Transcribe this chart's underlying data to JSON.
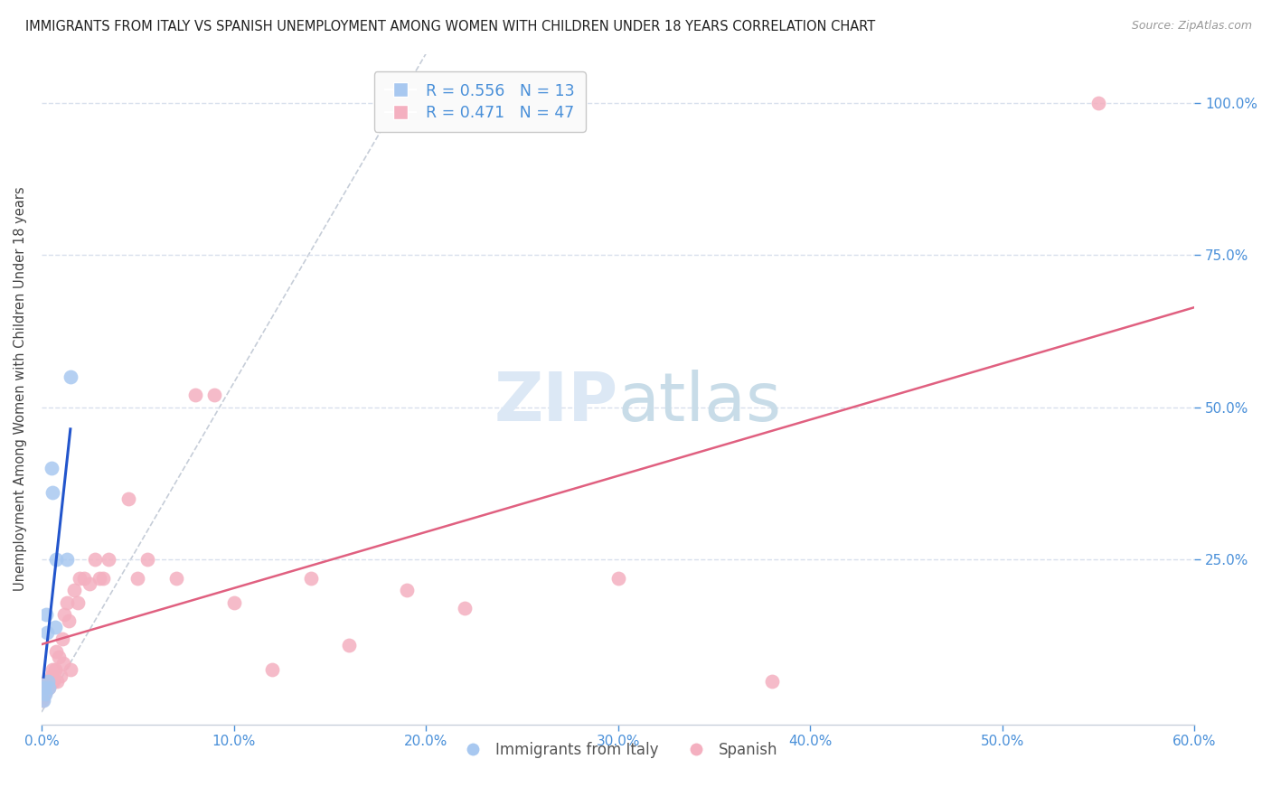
{
  "title": "IMMIGRANTS FROM ITALY VS SPANISH UNEMPLOYMENT AMONG WOMEN WITH CHILDREN UNDER 18 YEARS CORRELATION CHART",
  "source": "Source: ZipAtlas.com",
  "ylabel": "Unemployment Among Women with Children Under 18 years",
  "x_tick_values": [
    0.0,
    10.0,
    20.0,
    30.0,
    40.0,
    50.0,
    60.0
  ],
  "y_tick_values": [
    25.0,
    50.0,
    75.0,
    100.0
  ],
  "xlim": [
    0.0,
    60.0
  ],
  "ylim": [
    -2.0,
    108.0
  ],
  "italy_R": 0.556,
  "italy_N": 13,
  "spanish_R": 0.471,
  "spanish_N": 47,
  "italy_color": "#a8c8f0",
  "spanish_color": "#f4b0c0",
  "italy_line_color": "#2255cc",
  "spanish_line_color": "#e06080",
  "ref_line_color": "#c0c8d4",
  "background_color": "#ffffff",
  "grid_color": "#d8e0ec",
  "watermark_color": "#dce8f5",
  "italy_x": [
    0.1,
    0.15,
    0.2,
    0.25,
    0.3,
    0.35,
    0.4,
    0.5,
    0.55,
    0.7,
    0.75,
    1.3,
    1.5
  ],
  "italy_y": [
    2.0,
    4.0,
    3.0,
    16.0,
    13.0,
    5.0,
    4.0,
    40.0,
    36.0,
    14.0,
    25.0,
    25.0,
    55.0
  ],
  "spanish_x": [
    0.05,
    0.1,
    0.15,
    0.2,
    0.25,
    0.3,
    0.35,
    0.4,
    0.45,
    0.5,
    0.55,
    0.6,
    0.7,
    0.75,
    0.8,
    0.9,
    1.0,
    1.1,
    1.15,
    1.2,
    1.3,
    1.4,
    1.5,
    1.7,
    1.9,
    2.0,
    2.2,
    2.5,
    2.8,
    3.0,
    3.2,
    3.5,
    4.5,
    5.0,
    5.5,
    7.0,
    8.0,
    9.0,
    10.0,
    12.0,
    14.0,
    16.0,
    19.0,
    22.0,
    30.0,
    38.0,
    55.0
  ],
  "spanish_y": [
    2.0,
    2.5,
    3.0,
    4.0,
    4.5,
    5.0,
    5.0,
    4.0,
    5.0,
    6.0,
    7.0,
    5.0,
    7.0,
    10.0,
    5.0,
    9.0,
    6.0,
    12.0,
    8.0,
    16.0,
    18.0,
    15.0,
    7.0,
    20.0,
    18.0,
    22.0,
    22.0,
    21.0,
    25.0,
    22.0,
    22.0,
    25.0,
    35.0,
    22.0,
    25.0,
    22.0,
    52.0,
    52.0,
    18.0,
    7.0,
    22.0,
    11.0,
    20.0,
    17.0,
    22.0,
    5.0,
    100.0
  ],
  "legend_box_color": "#fafafa",
  "legend_border_color": "#c8c8c8",
  "tick_color": "#4a90d9",
  "label_color": "#444444"
}
